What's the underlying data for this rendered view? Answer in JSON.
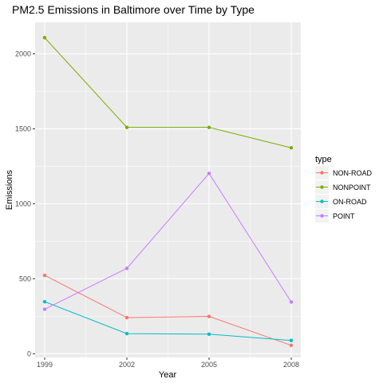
{
  "chart_data": {
    "type": "line",
    "title": "PM2.5 Emissions in Baltimore over Time by Type",
    "xlabel": "Year",
    "ylabel": "Emissions",
    "categories": [
      "1999",
      "2002",
      "2005",
      "2008"
    ],
    "x": [
      1999,
      2002,
      2005,
      2008
    ],
    "xlim": [
      1998.65,
      2008.35
    ],
    "ylim": [
      -25,
      2210
    ],
    "yticks": [
      0,
      500,
      1000,
      1500,
      2000
    ],
    "ytick_labels": [
      "0",
      "500",
      "1000",
      "1500",
      "2000"
    ],
    "grid": true,
    "panel_background": "#ebebeb",
    "legend": {
      "title": "type",
      "position": "right"
    },
    "series": [
      {
        "name": "NON-ROAD",
        "color": "#f8766d",
        "values": [
          522.9,
          240.8,
          248.9,
          55.8
        ]
      },
      {
        "name": "NONPOINT",
        "color": "#7cae00",
        "values": [
          2107.6,
          1509.5,
          1509.5,
          1373.2
        ]
      },
      {
        "name": "ON-ROAD",
        "color": "#00bfc4",
        "values": [
          346.8,
          134.3,
          130.4,
          88.3
        ]
      },
      {
        "name": "POINT",
        "color": "#c77cff",
        "values": [
          296.8,
          569.3,
          1202.5,
          344.98
        ]
      }
    ]
  }
}
